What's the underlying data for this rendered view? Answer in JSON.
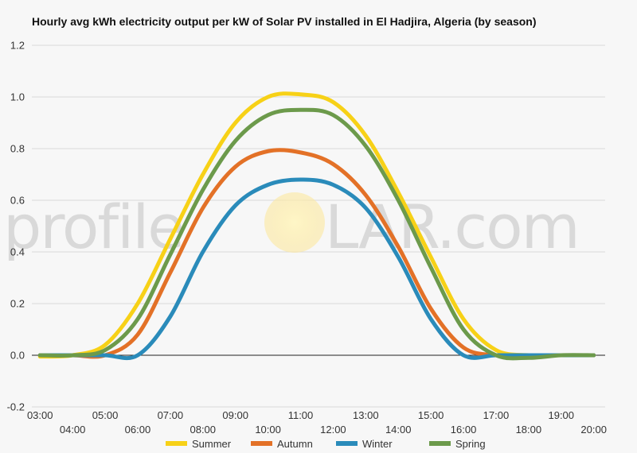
{
  "watermark": {
    "left": "profile",
    "right": "LAR.com"
  },
  "chart_data": {
    "type": "line",
    "title": "Hourly avg kWh electricity output per kW of Solar PV installed in El Hadjira, Algeria (by season)",
    "xlabel": "",
    "ylabel": "",
    "ylim": [
      -0.2,
      1.2
    ],
    "yticks": [
      "1.2",
      "1.0",
      "0.8",
      "0.6",
      "0.4",
      "0.2",
      "0.0",
      "-0.2"
    ],
    "xticks": [
      "03:00",
      "04:00",
      "05:00",
      "06:00",
      "07:00",
      "08:00",
      "09:00",
      "10:00",
      "11:00",
      "12:00",
      "13:00",
      "14:00",
      "15:00",
      "16:00",
      "17:00",
      "18:00",
      "19:00",
      "20:00"
    ],
    "grid": true,
    "legend_position": "bottom",
    "x": [
      3,
      4,
      5,
      6,
      7,
      8,
      9,
      10,
      11,
      12,
      13,
      14,
      15,
      16,
      17,
      18,
      19,
      20
    ],
    "series": [
      {
        "name": "Summer",
        "color": "#f7d117",
        "values": [
          -0.005,
          0.0,
          0.04,
          0.2,
          0.45,
          0.7,
          0.9,
          1.0,
          1.01,
          0.98,
          0.85,
          0.63,
          0.38,
          0.14,
          0.02,
          0.0,
          0.0,
          0.0
        ]
      },
      {
        "name": "Autumn",
        "color": "#e37127",
        "values": [
          0.0,
          0.0,
          0.0,
          0.08,
          0.32,
          0.57,
          0.73,
          0.79,
          0.785,
          0.74,
          0.62,
          0.42,
          0.18,
          0.03,
          0.0,
          0.0,
          0.0,
          0.0
        ]
      },
      {
        "name": "Winter",
        "color": "#2a8bba",
        "values": [
          0.0,
          0.0,
          0.0,
          0.0,
          0.15,
          0.4,
          0.58,
          0.66,
          0.68,
          0.66,
          0.57,
          0.38,
          0.14,
          0.0,
          0.0,
          0.0,
          0.0,
          0.0
        ]
      },
      {
        "name": "Spring",
        "color": "#6c9a4b",
        "values": [
          0.0,
          0.0,
          0.02,
          0.14,
          0.39,
          0.64,
          0.83,
          0.93,
          0.95,
          0.93,
          0.81,
          0.6,
          0.34,
          0.1,
          0.0,
          -0.01,
          0.0,
          0.0
        ]
      }
    ]
  }
}
